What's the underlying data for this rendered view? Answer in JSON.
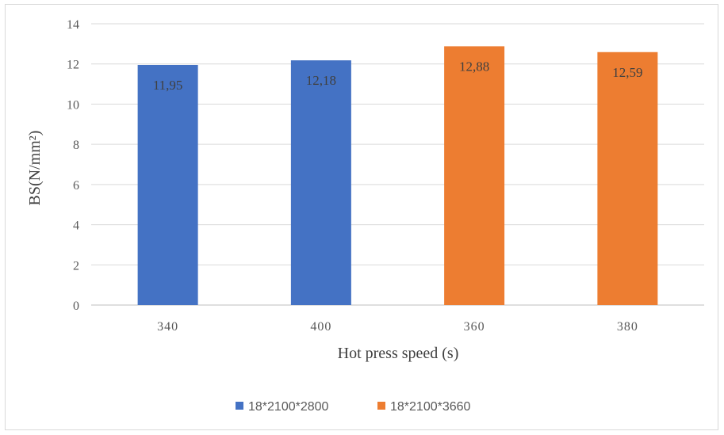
{
  "chart_data": {
    "type": "bar",
    "categories": [
      "340",
      "400",
      "360",
      "380"
    ],
    "series": [
      {
        "name": "18*2100*2800",
        "color": "#4472C4",
        "values": [
          11.95,
          12.18,
          null,
          null
        ]
      },
      {
        "name": "18*2100*3660",
        "color": "#ED7D31",
        "values": [
          null,
          null,
          12.88,
          12.59
        ]
      }
    ],
    "data_labels": [
      "11,95",
      "12,18",
      "12,88",
      "12,59"
    ],
    "title": "",
    "xlabel": "Hot press speed (s)",
    "ylabel": "BS(N/mm²)",
    "ylim": [
      0,
      14
    ],
    "yticks": [
      0,
      2,
      4,
      6,
      8,
      10,
      12,
      14
    ],
    "ytick_labels": [
      "0",
      "2",
      "4",
      "6",
      "8",
      "10",
      "12",
      "14"
    ],
    "grid": true,
    "legend_position": "bottom"
  }
}
